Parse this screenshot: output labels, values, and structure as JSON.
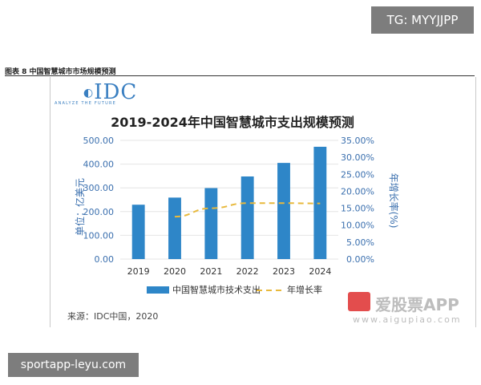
{
  "watermark_top": "TG: MYYJJPP",
  "watermark_bottom": "sportapp-leyu.com",
  "figure_caption": "图表 8 中国智慧城市市场规模预测",
  "logo": {
    "name": "IDC",
    "tagline": "ANALYZE THE FUTURE"
  },
  "source_note": "来源：IDC中国，2020",
  "app_watermark": {
    "name": "爱股票APP",
    "url": "www.aigupiao.com"
  },
  "colors": {
    "bar": "#2e86c8",
    "line": "#e8b93c",
    "axis_text": "#3a6fae",
    "title": "#222222"
  },
  "chart_data": {
    "type": "bar",
    "title": "2019-2024年中国智慧城市支出规模预测",
    "categories": [
      "2019",
      "2020",
      "2021",
      "2022",
      "2023",
      "2024"
    ],
    "ylabel": "单位：亿美元",
    "y2label": "年增长率(%)",
    "ylim": [
      0,
      500
    ],
    "y2lim": [
      0,
      35
    ],
    "yticks": [
      "0.00",
      "100.00",
      "200.00",
      "300.00",
      "400.00",
      "500.00"
    ],
    "y2ticks": [
      "0.00%",
      "5.00%",
      "10.00%",
      "15.00%",
      "20.00%",
      "25.00%",
      "30.00%",
      "35.00%"
    ],
    "series": [
      {
        "name": "中国智慧城市技术支出",
        "type": "bar",
        "values": [
          229,
          259,
          299,
          348,
          405,
          473
        ]
      },
      {
        "name": "年增长率",
        "type": "line",
        "style": "dashed",
        "values": [
          null,
          12.5,
          15.0,
          16.5,
          16.5,
          16.4
        ]
      }
    ],
    "legend": "bottom",
    "grid": true
  }
}
